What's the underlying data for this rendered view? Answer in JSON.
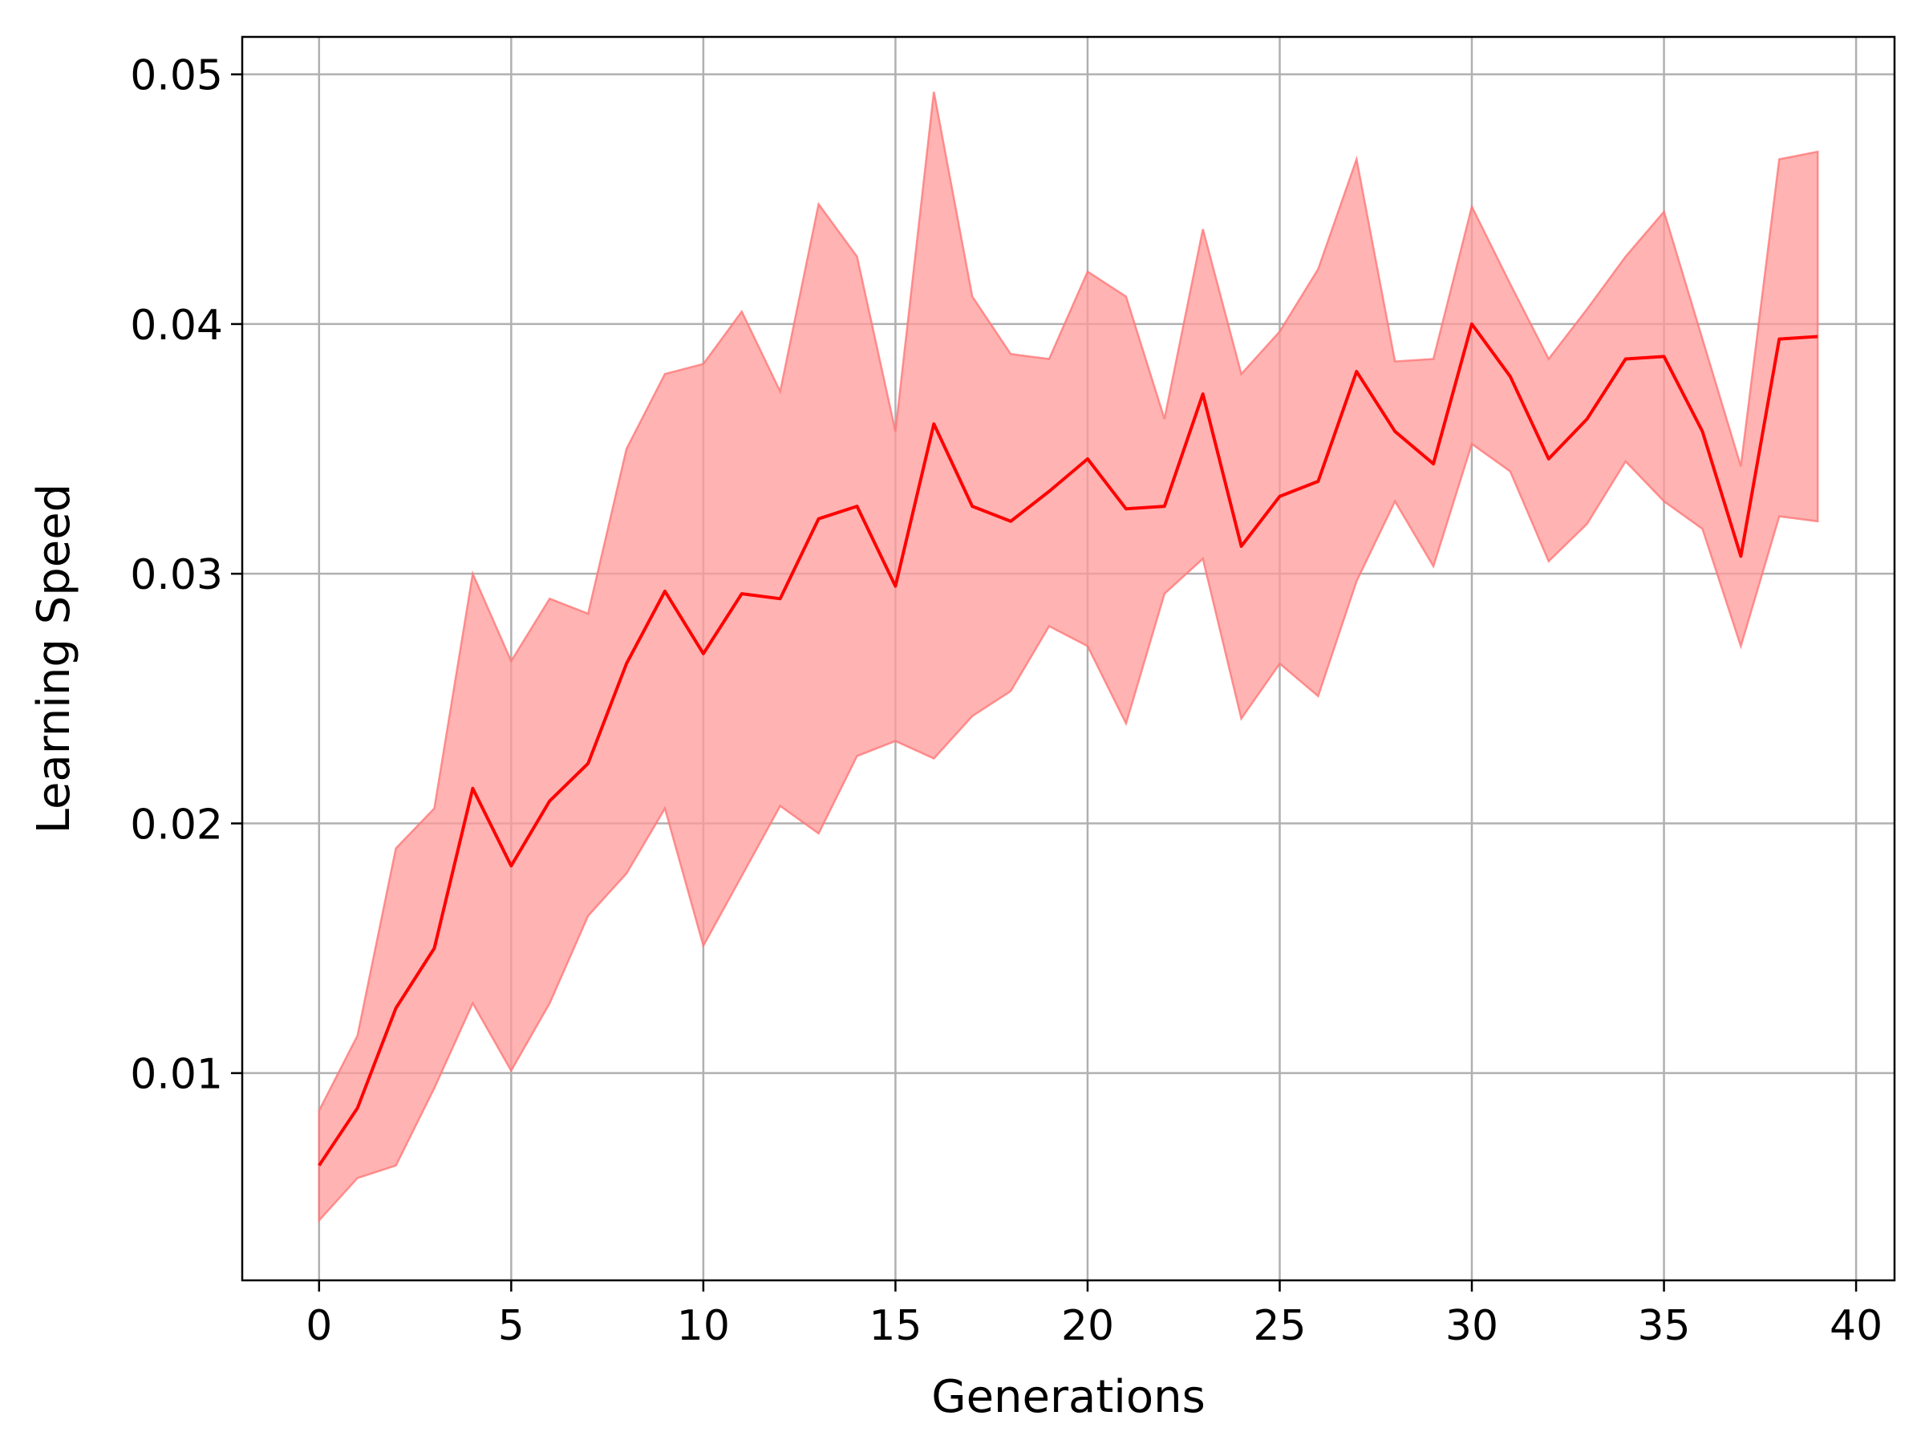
{
  "chart_data": {
    "type": "line",
    "title": "",
    "xlabel": "Generations",
    "ylabel": "Learning Speed",
    "xlim": [
      -2,
      41
    ],
    "ylim": [
      0.0017,
      0.0515
    ],
    "xticks": [
      0,
      5,
      10,
      15,
      20,
      25,
      30,
      35,
      40
    ],
    "xtick_labels": [
      "0",
      "5",
      "10",
      "15",
      "20",
      "25",
      "30",
      "35",
      "40"
    ],
    "yticks": [
      0.01,
      0.02,
      0.03,
      0.04,
      0.05
    ],
    "ytick_labels": [
      "0.01",
      "0.02",
      "0.03",
      "0.04",
      "0.05"
    ],
    "grid": true,
    "colors": {
      "line": "#ff0000",
      "band": "#ff9999"
    },
    "x": [
      0,
      1,
      2,
      3,
      4,
      5,
      6,
      7,
      8,
      9,
      10,
      11,
      12,
      13,
      14,
      15,
      16,
      17,
      18,
      19,
      20,
      21,
      22,
      23,
      24,
      25,
      26,
      27,
      28,
      29,
      30,
      31,
      32,
      33,
      34,
      35,
      36,
      37,
      38,
      39
    ],
    "series": [
      {
        "values": [
          0.0063,
          0.0086,
          0.0126,
          0.015,
          0.0214,
          0.0183,
          0.0209,
          0.0224,
          0.0264,
          0.0293,
          0.0268,
          0.0292,
          0.029,
          0.0322,
          0.0327,
          0.0295,
          0.036,
          0.0327,
          0.0321,
          0.0333,
          0.0346,
          0.0326,
          0.0327,
          0.0372,
          0.0311,
          0.0331,
          0.0337,
          0.0381,
          0.0357,
          0.0344,
          0.04,
          0.0379,
          0.0346,
          0.0362,
          0.0386,
          0.0387,
          0.0357,
          0.0307,
          0.0394,
          0.0395
        ],
        "lower": [
          0.0041,
          0.0058,
          0.0063,
          0.0094,
          0.0128,
          0.0101,
          0.0128,
          0.0163,
          0.018,
          0.0206,
          0.0151,
          0.0179,
          0.0207,
          0.0196,
          0.0227,
          0.0233,
          0.0226,
          0.0243,
          0.0253,
          0.0279,
          0.0271,
          0.024,
          0.0292,
          0.0306,
          0.0242,
          0.0264,
          0.0251,
          0.0297,
          0.0329,
          0.0303,
          0.0352,
          0.0341,
          0.0305,
          0.032,
          0.0345,
          0.0329,
          0.0318,
          0.0271,
          0.0323,
          0.0321
        ],
        "upper": [
          0.0085,
          0.0115,
          0.019,
          0.0206,
          0.03,
          0.0265,
          0.029,
          0.0284,
          0.035,
          0.038,
          0.0384,
          0.0405,
          0.0373,
          0.0448,
          0.0427,
          0.0357,
          0.0493,
          0.0411,
          0.0388,
          0.0386,
          0.0421,
          0.0411,
          0.0362,
          0.0438,
          0.038,
          0.0397,
          0.0422,
          0.0466,
          0.0385,
          0.0386,
          0.0447,
          0.0416,
          0.0386,
          0.0406,
          0.0427,
          0.0445,
          0.0394,
          0.0343,
          0.0466,
          0.0469
        ]
      }
    ]
  }
}
